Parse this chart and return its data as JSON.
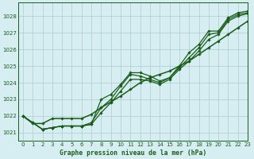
{
  "title": "Graphe pression niveau de la mer (hPa)",
  "bg_color": "#d6eef2",
  "grid_color": "#aacccc",
  "line_color": "#1a5c1a",
  "xlim": [
    -0.5,
    23
  ],
  "ylim": [
    1020.5,
    1028.8
  ],
  "yticks": [
    1021,
    1022,
    1023,
    1024,
    1025,
    1026,
    1027,
    1028
  ],
  "xticks": [
    0,
    1,
    2,
    3,
    4,
    5,
    6,
    7,
    8,
    9,
    10,
    11,
    12,
    13,
    14,
    15,
    16,
    17,
    18,
    19,
    20,
    21,
    22,
    23
  ],
  "series": [
    [
      1022.0,
      1021.6,
      1021.2,
      1021.3,
      1021.4,
      1021.4,
      1021.4,
      1021.5,
      1023.0,
      1023.3,
      1023.9,
      1024.6,
      1024.6,
      1024.4,
      1024.1,
      1024.3,
      1025.0,
      1025.8,
      1026.3,
      1027.1,
      1027.1,
      1027.9,
      1028.2,
      1028.3
    ],
    [
      1022.0,
      1021.6,
      1021.2,
      1021.3,
      1021.4,
      1021.4,
      1021.4,
      1021.6,
      1022.5,
      1023.0,
      1023.8,
      1024.5,
      1024.4,
      1024.2,
      1024.0,
      1024.3,
      1024.9,
      1025.5,
      1026.1,
      1026.9,
      1027.0,
      1027.8,
      1028.1,
      1028.2
    ],
    [
      1022.0,
      1021.6,
      1021.2,
      1021.3,
      1021.4,
      1021.4,
      1021.4,
      1021.5,
      1022.2,
      1022.8,
      1023.5,
      1024.2,
      1024.2,
      1024.1,
      1023.9,
      1024.2,
      1024.8,
      1025.3,
      1025.9,
      1026.6,
      1026.9,
      1027.7,
      1028.0,
      1028.15
    ],
    [
      1022.0,
      1021.55,
      1021.55,
      1021.85,
      1021.85,
      1021.85,
      1021.85,
      1022.1,
      1022.5,
      1022.85,
      1023.2,
      1023.6,
      1024.0,
      1024.3,
      1024.5,
      1024.7,
      1025.0,
      1025.3,
      1025.7,
      1026.1,
      1026.5,
      1026.9,
      1027.3,
      1027.7
    ]
  ],
  "linewidths": [
    0.9,
    0.9,
    0.9,
    1.1
  ],
  "marker_series": [
    0,
    1,
    2,
    3
  ]
}
